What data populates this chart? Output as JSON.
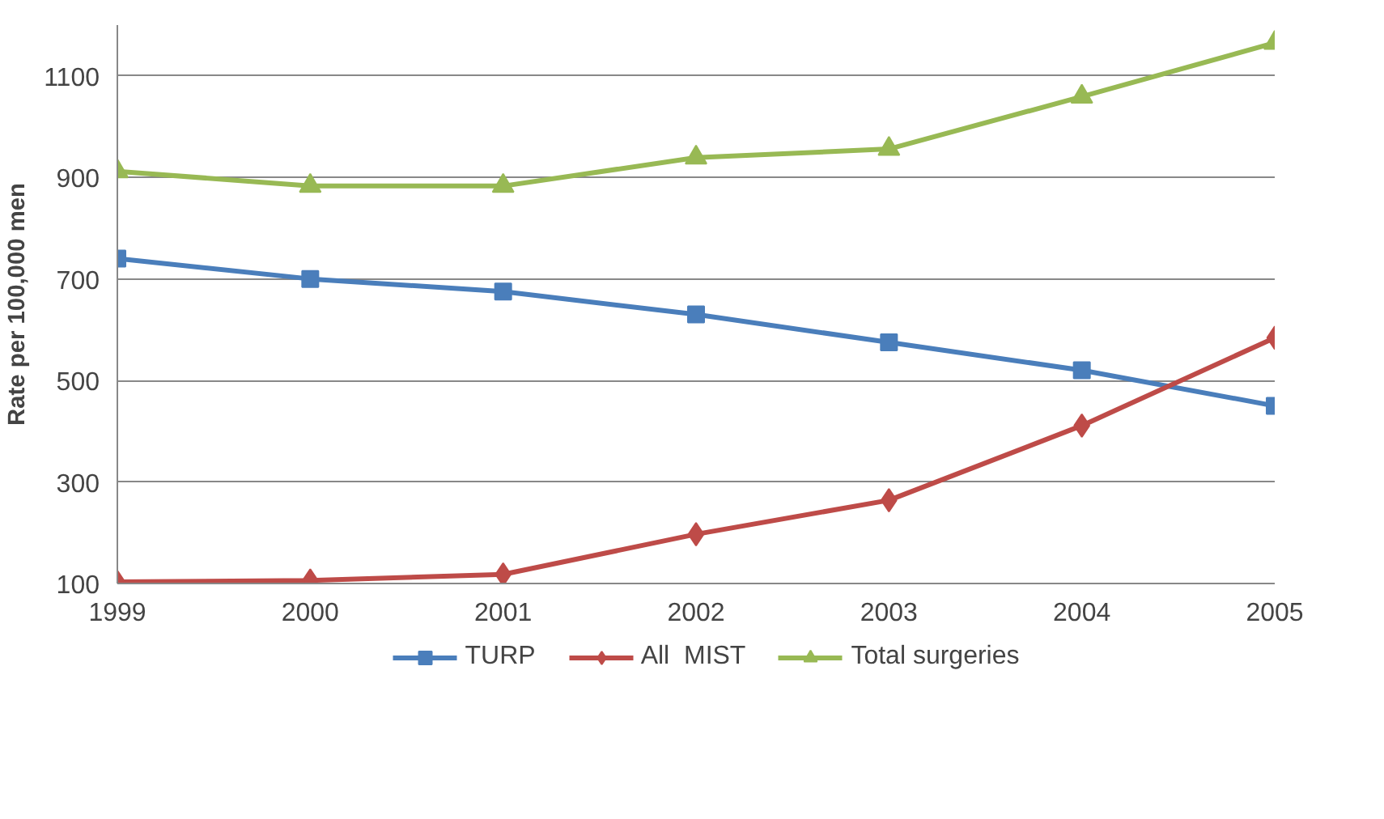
{
  "chart_data": {
    "type": "line",
    "ylabel": "Rate per 100,000 men",
    "x": [
      1999,
      2000,
      2001,
      2002,
      2003,
      2004,
      2005
    ],
    "xlim": [
      1999,
      2005
    ],
    "xticks": [
      1999,
      2000,
      2001,
      2002,
      2003,
      2004,
      2005
    ],
    "ylim": [
      100,
      1200
    ],
    "yticks": [
      100,
      300,
      500,
      700,
      900,
      1100
    ],
    "grid": "y",
    "legend": "bottom",
    "series": [
      {
        "name": "TURP",
        "color": "#4a7ebb",
        "marker": "square",
        "values": [
          740,
          700,
          675,
          630,
          575,
          520,
          450
        ]
      },
      {
        "name": "All  MIST",
        "color": "#be4b48",
        "marker": "diamond",
        "values": [
          103,
          106,
          118,
          197,
          264,
          411,
          584
        ]
      },
      {
        "name": "Total surgeries",
        "color": "#98b954",
        "marker": "triangle",
        "values": [
          912,
          883,
          883,
          939,
          956,
          1059,
          1165
        ]
      }
    ]
  }
}
